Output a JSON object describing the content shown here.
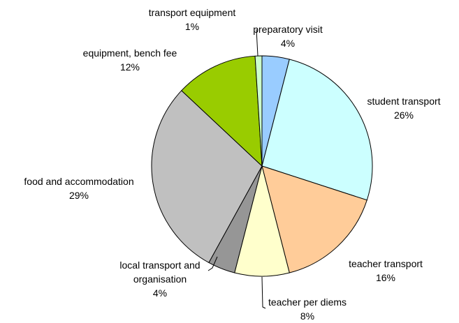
{
  "chart_data": {
    "type": "pie",
    "categories": [
      "preparatory visit",
      "student transport",
      "teacher transport",
      "teacher per diems",
      "local transport and organisation",
      "food and accommodation",
      "equipment, bench fee",
      "transport equipment"
    ],
    "values": [
      4,
      26,
      16,
      8,
      4,
      29,
      12,
      1
    ],
    "value_labels": [
      "4%",
      "26%",
      "16%",
      "8%",
      "4%",
      "29%",
      "12%",
      "1%"
    ],
    "colors": [
      "#99ccff",
      "#ccffff",
      "#ffcc99",
      "#ffffcc",
      "#969696",
      "#c0c0c0",
      "#99cc00",
      "#ccffcc"
    ]
  }
}
